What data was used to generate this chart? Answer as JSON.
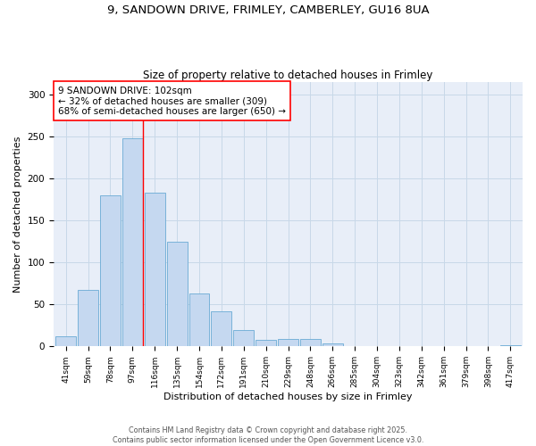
{
  "title_line1": "9, SANDOWN DRIVE, FRIMLEY, CAMBERLEY, GU16 8UA",
  "title_line2": "Size of property relative to detached houses in Frimley",
  "xlabel": "Distribution of detached houses by size in Frimley",
  "ylabel": "Number of detached properties",
  "categories": [
    "41sqm",
    "59sqm",
    "78sqm",
    "97sqm",
    "116sqm",
    "135sqm",
    "154sqm",
    "172sqm",
    "191sqm",
    "210sqm",
    "229sqm",
    "248sqm",
    "266sqm",
    "285sqm",
    "304sqm",
    "323sqm",
    "342sqm",
    "361sqm",
    "379sqm",
    "398sqm",
    "417sqm"
  ],
  "values": [
    12,
    67,
    180,
    248,
    183,
    125,
    63,
    42,
    20,
    8,
    9,
    9,
    4,
    0,
    0,
    0,
    0,
    0,
    0,
    0,
    1
  ],
  "bar_color": "#C5D8F0",
  "bar_edge_color": "#6AAAD4",
  "grid_color": "#C8D8E8",
  "background_color": "#E8EEF8",
  "red_line_x": 3,
  "annotation_text_line1": "9 SANDOWN DRIVE: 102sqm",
  "annotation_text_line2": "← 32% of detached houses are smaller (309)",
  "annotation_text_line3": "68% of semi-detached houses are larger (650) →",
  "ylim": [
    0,
    315
  ],
  "yticks": [
    0,
    50,
    100,
    150,
    200,
    250,
    300
  ],
  "footer_line1": "Contains HM Land Registry data © Crown copyright and database right 2025.",
  "footer_line2": "Contains public sector information licensed under the Open Government Licence v3.0."
}
